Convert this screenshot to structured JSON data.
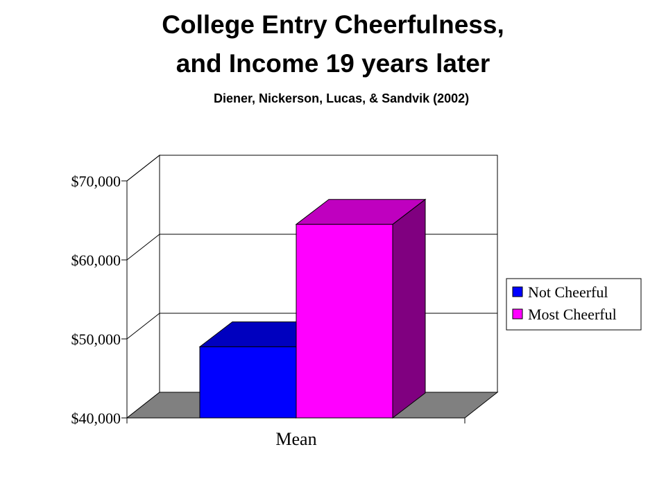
{
  "title_line1": "College Entry Cheerfulness,",
  "title_line2": "and Income 19 years later",
  "subtitle": "Diener, Nickerson, Lucas, & Sandvik (2002)",
  "chart_data": {
    "type": "bar",
    "categories": [
      "Mean"
    ],
    "series": [
      {
        "name": "Not Cheerful",
        "values": [
          49000
        ],
        "color": "#0000ff"
      },
      {
        "name": "Most Cheerful",
        "values": [
          64500
        ],
        "color": "#ff00ff"
      }
    ],
    "ylim": [
      40000,
      70000
    ],
    "yticks": [
      40000,
      50000,
      60000,
      70000
    ],
    "ytick_labels": [
      "$40,000",
      "$50,000",
      "$60,000",
      "$70,000"
    ],
    "grid": true,
    "legend_position": "right",
    "style": "3d",
    "floor_color": "#808080"
  }
}
